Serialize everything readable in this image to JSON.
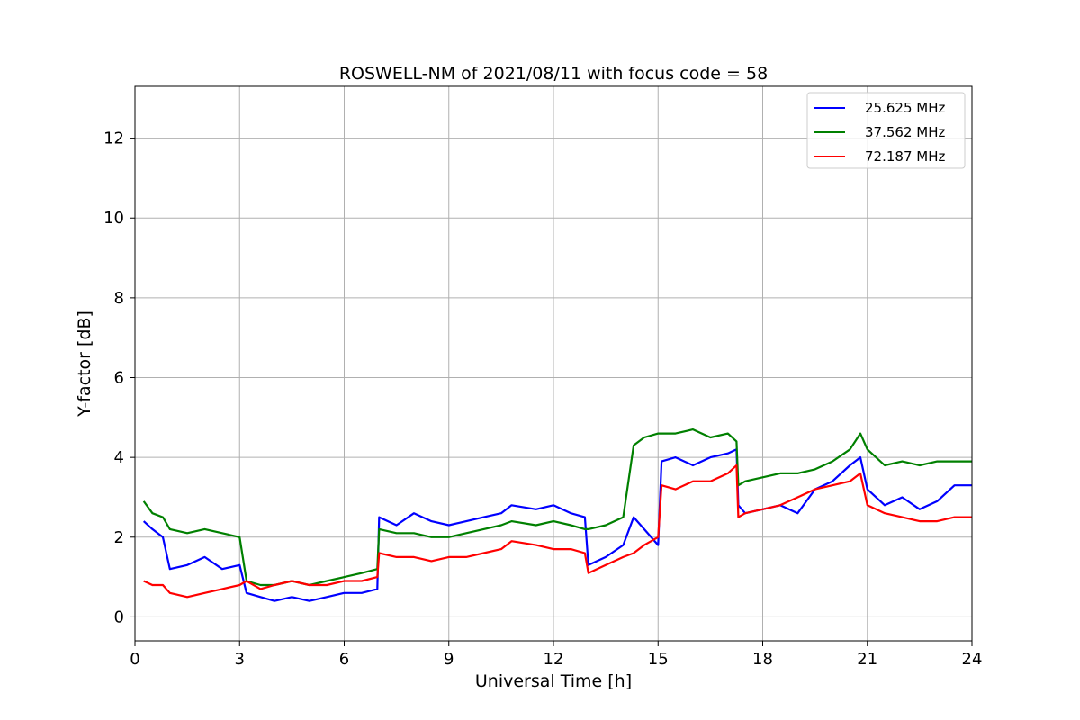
{
  "chart_data": {
    "type": "line",
    "title": "ROSWELL-NM of 2021/08/11 with focus code = 58",
    "xlabel": "Universal Time [h]",
    "ylabel": "Y-factor [dB]",
    "xlim": [
      0,
      24
    ],
    "ylim": [
      -0.6,
      13.3
    ],
    "xticks": [
      0,
      3,
      6,
      9,
      12,
      15,
      18,
      21,
      24
    ],
    "yticks": [
      0,
      2,
      4,
      6,
      8,
      10,
      12
    ],
    "grid": true,
    "legend_position": "top-right",
    "series": [
      {
        "name": "25.625 MHz",
        "color": "#0000ff",
        "x": [
          0.25,
          0.5,
          0.8,
          1.0,
          1.5,
          2.0,
          2.5,
          3.0,
          3.2,
          3.6,
          4.0,
          4.5,
          5.0,
          5.5,
          6.0,
          6.5,
          6.95,
          7.0,
          7.5,
          8.0,
          8.5,
          9.0,
          9.5,
          10.0,
          10.5,
          10.8,
          11.5,
          12.0,
          12.5,
          12.9,
          13.0,
          13.5,
          14.0,
          14.3,
          14.6,
          15.0,
          15.1,
          15.5,
          16.0,
          16.5,
          17.0,
          17.25,
          17.3,
          17.5,
          18.0,
          18.5,
          19.0,
          19.5,
          20.0,
          20.5,
          20.8,
          21.0,
          21.5,
          22.0,
          22.5,
          23.0,
          23.5,
          24.0
        ],
        "values": [
          2.4,
          2.2,
          2.0,
          1.2,
          1.3,
          1.5,
          1.2,
          1.3,
          0.6,
          0.5,
          0.4,
          0.5,
          0.4,
          0.5,
          0.6,
          0.6,
          0.7,
          2.5,
          2.3,
          2.6,
          2.4,
          2.3,
          2.4,
          2.5,
          2.6,
          2.8,
          2.7,
          2.8,
          2.6,
          2.5,
          1.3,
          1.5,
          1.8,
          2.5,
          2.2,
          1.8,
          3.9,
          4.0,
          3.8,
          4.0,
          4.1,
          4.2,
          2.8,
          2.6,
          2.7,
          2.8,
          2.6,
          3.2,
          3.4,
          3.8,
          4.0,
          3.2,
          2.8,
          3.0,
          2.7,
          2.9,
          3.3,
          3.3
        ]
      },
      {
        "name": "37.562 MHz",
        "color": "#008000",
        "x": [
          0.25,
          0.5,
          0.8,
          1.0,
          1.5,
          2.0,
          2.5,
          3.0,
          3.2,
          3.6,
          4.0,
          4.5,
          5.0,
          5.5,
          6.0,
          6.5,
          6.95,
          7.0,
          7.5,
          8.0,
          8.5,
          9.0,
          9.5,
          10.0,
          10.5,
          10.8,
          11.5,
          12.0,
          12.5,
          12.9,
          13.0,
          13.5,
          14.0,
          14.3,
          14.6,
          15.0,
          15.1,
          15.5,
          16.0,
          16.5,
          17.0,
          17.25,
          17.3,
          17.5,
          18.0,
          18.5,
          19.0,
          19.5,
          20.0,
          20.5,
          20.8,
          21.0,
          21.5,
          22.0,
          22.5,
          23.0,
          23.5,
          24.0
        ],
        "values": [
          2.9,
          2.6,
          2.5,
          2.2,
          2.1,
          2.2,
          2.1,
          2.0,
          0.9,
          0.8,
          0.8,
          0.9,
          0.8,
          0.9,
          1.0,
          1.1,
          1.2,
          2.2,
          2.1,
          2.1,
          2.0,
          2.0,
          2.1,
          2.2,
          2.3,
          2.4,
          2.3,
          2.4,
          2.3,
          2.2,
          2.2,
          2.3,
          2.5,
          4.3,
          4.5,
          4.6,
          4.6,
          4.6,
          4.7,
          4.5,
          4.6,
          4.4,
          3.3,
          3.4,
          3.5,
          3.6,
          3.6,
          3.7,
          3.9,
          4.2,
          4.6,
          4.2,
          3.8,
          3.9,
          3.8,
          3.9,
          3.9,
          3.9
        ]
      },
      {
        "name": "72.187 MHz",
        "color": "#ff0000",
        "x": [
          0.25,
          0.5,
          0.8,
          1.0,
          1.5,
          2.0,
          2.5,
          3.0,
          3.2,
          3.6,
          4.0,
          4.5,
          5.0,
          5.5,
          6.0,
          6.5,
          6.95,
          7.0,
          7.5,
          8.0,
          8.5,
          9.0,
          9.5,
          10.0,
          10.5,
          10.8,
          11.5,
          12.0,
          12.5,
          12.9,
          13.0,
          13.5,
          14.0,
          14.3,
          14.6,
          15.0,
          15.1,
          15.5,
          16.0,
          16.5,
          17.0,
          17.25,
          17.3,
          17.5,
          18.0,
          18.5,
          19.0,
          19.5,
          20.0,
          20.5,
          20.8,
          21.0,
          21.5,
          22.0,
          22.5,
          23.0,
          23.5,
          24.0
        ],
        "values": [
          0.9,
          0.8,
          0.8,
          0.6,
          0.5,
          0.6,
          0.7,
          0.8,
          0.9,
          0.7,
          0.8,
          0.9,
          0.8,
          0.8,
          0.9,
          0.9,
          1.0,
          1.6,
          1.5,
          1.5,
          1.4,
          1.5,
          1.5,
          1.6,
          1.7,
          1.9,
          1.8,
          1.7,
          1.7,
          1.6,
          1.1,
          1.3,
          1.5,
          1.6,
          1.8,
          2.0,
          3.3,
          3.2,
          3.4,
          3.4,
          3.6,
          3.8,
          2.5,
          2.6,
          2.7,
          2.8,
          3.0,
          3.2,
          3.3,
          3.4,
          3.6,
          2.8,
          2.6,
          2.5,
          2.4,
          2.4,
          2.5,
          2.5
        ]
      }
    ]
  }
}
